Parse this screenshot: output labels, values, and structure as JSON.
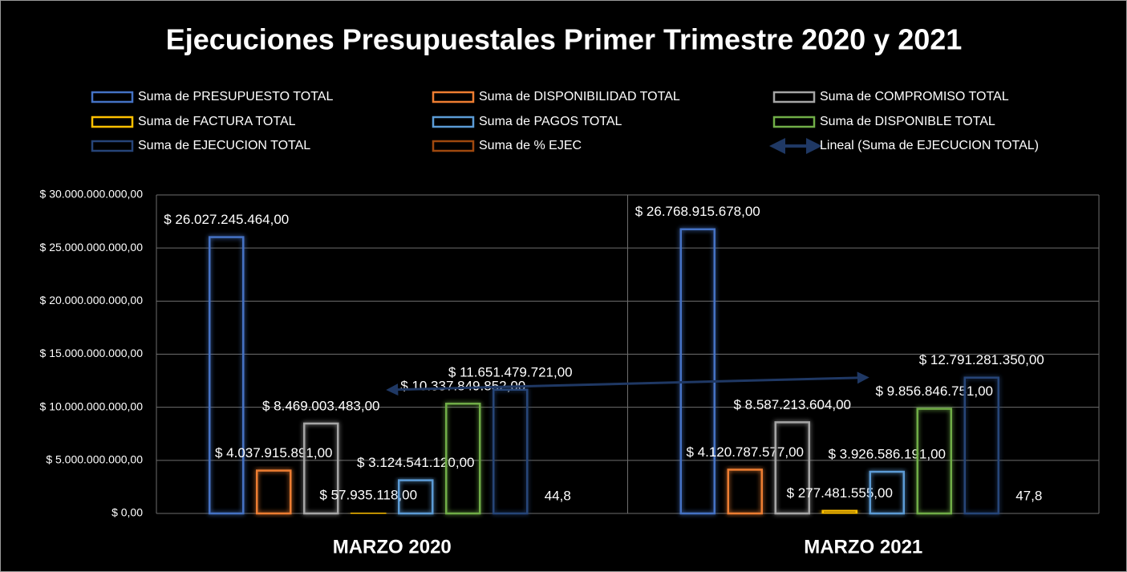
{
  "chart_data": {
    "type": "bar",
    "title": "Ejecuciones Presupuestales Primer Trimestre 2020 y 2021",
    "categories": [
      "MARZO 2020",
      "MARZO 2021"
    ],
    "series": [
      {
        "name": "Suma de PRESUPUESTO TOTAL",
        "color": "#4472c4",
        "values": [
          26027245464,
          26768915678
        ],
        "value_labels": [
          "$ 26.027.245.464,00",
          "$ 26.768.915.678,00"
        ]
      },
      {
        "name": "Suma de DISPONIBILIDAD TOTAL",
        "color": "#ed7d31",
        "values": [
          4037915891,
          4120787577
        ],
        "value_labels": [
          "$ 4.037.915.891,00",
          "$ 4.120.787.577,00"
        ]
      },
      {
        "name": "Suma de COMPROMISO TOTAL",
        "color": "#a5a5a5",
        "values": [
          8469003483,
          8587213604
        ],
        "value_labels": [
          "$ 8.469.003.483,00",
          "$ 8.587.213.604,00"
        ]
      },
      {
        "name": "Suma de  FACTURA TOTAL",
        "color": "#ffc000",
        "values": [
          57935118,
          277481555
        ],
        "value_labels": [
          "$ 57.935.118,00",
          "$ 277.481.555,00"
        ]
      },
      {
        "name": "Suma de  PAGOS TOTAL",
        "color": "#5b9bd5",
        "values": [
          3124541120,
          3926586191
        ],
        "value_labels": [
          "$ 3.124.541.120,00",
          "$ 3.926.586.191,00"
        ]
      },
      {
        "name": "Suma de DISPONIBLE TOTAL",
        "color": "#70ad47",
        "values": [
          10337849852,
          9856846751
        ],
        "value_labels": [
          "$ 10.337.849.852,00",
          "$ 9.856.846.751,00"
        ]
      },
      {
        "name": "Suma de EJECUCION TOTAL",
        "color": "#264478",
        "values": [
          11651479721,
          12791281350
        ],
        "value_labels": [
          "$ 11.651.479.721,00",
          "$ 12.791.281.350,00"
        ]
      },
      {
        "name": "Suma de % EJEC",
        "color": "#9e480e",
        "values": [
          44.8,
          47.8
        ],
        "value_labels": [
          "44,8",
          "47,8"
        ]
      }
    ],
    "trendline": {
      "name": "Lineal (Suma de EJECUCION TOTAL)",
      "color": "#1f3864",
      "series": 6
    },
    "ylim": [
      0,
      30000000000
    ],
    "yticks": [
      {
        "value": 0,
        "label": "$ 0,00"
      },
      {
        "value": 5000000000,
        "label": "$ 5.000.000.000,00"
      },
      {
        "value": 10000000000,
        "label": "$ 10.000.000.000,00"
      },
      {
        "value": 15000000000,
        "label": "$ 15.000.000.000,00"
      },
      {
        "value": 20000000000,
        "label": "$ 20.000.000.000,00"
      },
      {
        "value": 25000000000,
        "label": "$ 25.000.000.000,00"
      },
      {
        "value": 30000000000,
        "label": "$ 30.000.000.000,00"
      }
    ],
    "grid": true,
    "legend": "top"
  }
}
